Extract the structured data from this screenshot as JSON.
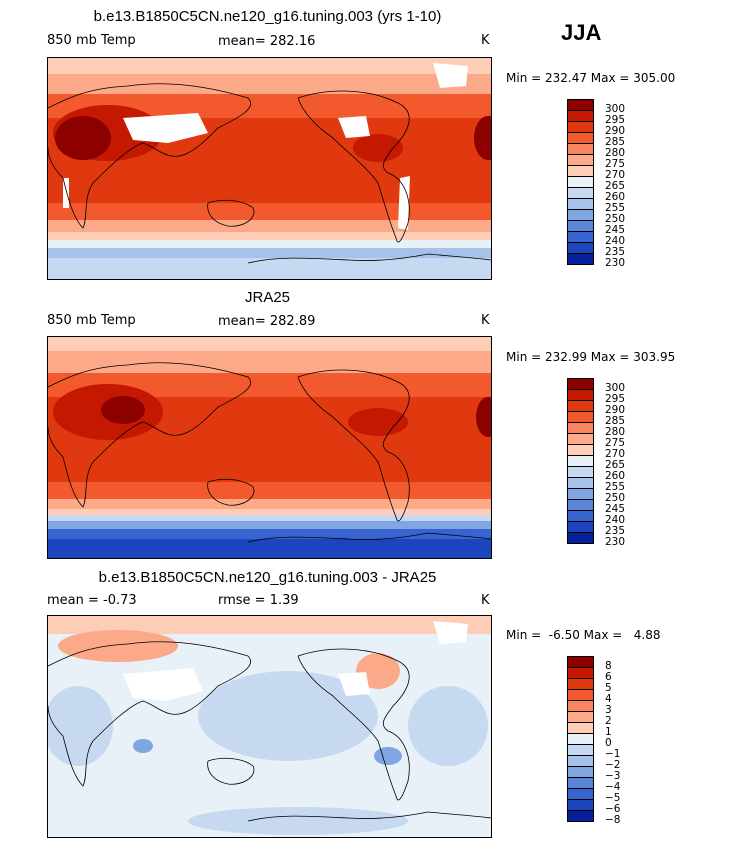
{
  "season": "JJA",
  "panels": [
    {
      "title": "b.e13.B1850C5CN.ne120_g16.tuning.003 (yrs 1-10)",
      "left_label": "850 mb Temp",
      "center_label": "mean=  282.16",
      "units": "K",
      "minmax": "Min = 232.47 Max = 305.00",
      "levels": [
        "300",
        "295",
        "290",
        "285",
        "280",
        "275",
        "270",
        "265",
        "260",
        "255",
        "250",
        "245",
        "240",
        "235",
        "230"
      ],
      "colors": [
        "#8c0000",
        "#c41800",
        "#e0380f",
        "#f25a2e",
        "#f98560",
        "#fca98a",
        "#fdcdb5",
        "#e8f0f8",
        "#c7d9f0",
        "#a6c2ea",
        "#7fa5e2",
        "#5a86d8",
        "#3665cf",
        "#1b44bd",
        "#06209c"
      ]
    },
    {
      "title": "JRA25",
      "left_label": "850 mb Temp",
      "center_label": "mean=  282.89",
      "units": "K",
      "minmax": "Min = 232.99 Max = 303.95",
      "levels": [
        "300",
        "295",
        "290",
        "285",
        "280",
        "275",
        "270",
        "265",
        "260",
        "255",
        "250",
        "245",
        "240",
        "235",
        "230"
      ],
      "colors": [
        "#8c0000",
        "#c41800",
        "#e0380f",
        "#f25a2e",
        "#f98560",
        "#fca98a",
        "#fdcdb5",
        "#e8f0f8",
        "#c7d9f0",
        "#a6c2ea",
        "#7fa5e2",
        "#5a86d8",
        "#3665cf",
        "#1b44bd",
        "#06209c"
      ]
    },
    {
      "title": "b.e13.B1850C5CN.ne120_g16.tuning.003 - JRA25",
      "left_label": "mean =   -0.73",
      "center_label": "rmse =    1.39",
      "units": "K",
      "minmax": "Min =  -6.50 Max =   4.88",
      "levels": [
        "8",
        "6",
        "5",
        "4",
        "3",
        "2",
        "1",
        "0",
        "−1",
        "−2",
        "−3",
        "−4",
        "−5",
        "−6",
        "−8"
      ],
      "colors": [
        "#8c0000",
        "#c41800",
        "#e0380f",
        "#f25a2e",
        "#f98560",
        "#fca98a",
        "#fdcdb5",
        "#e8f0f8",
        "#c7d9f0",
        "#a6c2ea",
        "#7fa5e2",
        "#5a86d8",
        "#3665cf",
        "#1b44bd",
        "#06209c"
      ]
    }
  ]
}
